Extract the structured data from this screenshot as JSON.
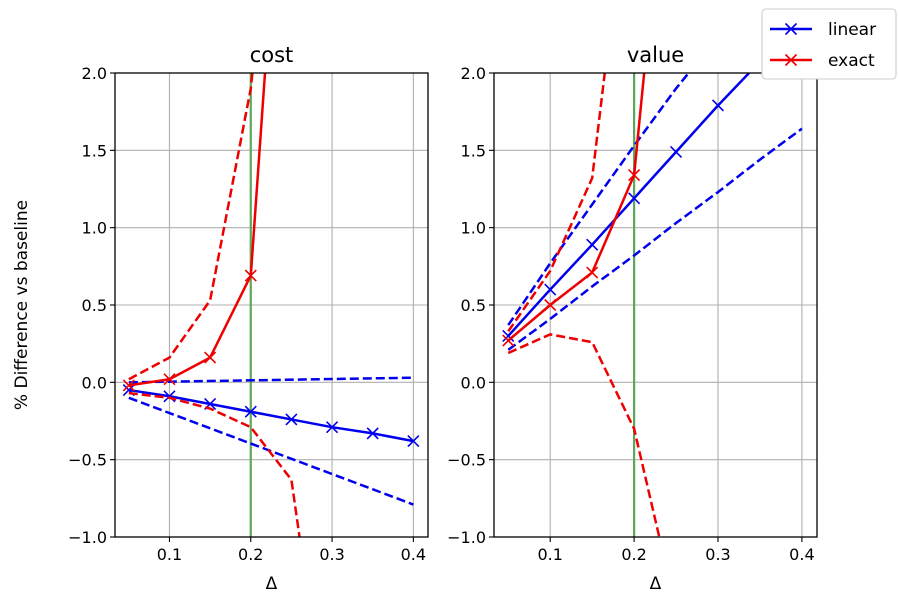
{
  "chart_data": [
    {
      "type": "line",
      "title": "cost",
      "xlabel": "Δ",
      "ylabel": "% Difference vs baseline",
      "xlim": [
        0.033,
        0.418
      ],
      "ylim": [
        -1.0,
        2.0
      ],
      "xticks": [
        "0.1",
        "0.2",
        "0.3",
        "0.4"
      ],
      "xtick_values": [
        0.1,
        0.2,
        0.3,
        0.4
      ],
      "yticks": [
        "−1.0",
        "−0.5",
        "0.0",
        "0.5",
        "1.0",
        "1.5",
        "2.0"
      ],
      "ytick_values": [
        -1.0,
        -0.5,
        0.0,
        0.5,
        1.0,
        1.5,
        2.0
      ],
      "grid": true,
      "vline": {
        "x": 0.2,
        "color": "#5aa85a"
      },
      "series": [
        {
          "legend": "linear",
          "color": "#0000ee",
          "style": "solid",
          "marker": "x",
          "x": [
            0.05,
            0.1,
            0.15,
            0.2,
            0.25,
            0.3,
            0.35,
            0.4
          ],
          "y": [
            -0.05,
            -0.09,
            -0.14,
            -0.19,
            -0.24,
            -0.29,
            -0.33,
            -0.38
          ]
        },
        {
          "color": "#0000ee",
          "style": "dashed",
          "x": [
            0.05,
            0.4
          ],
          "y": [
            0.0,
            0.03
          ]
        },
        {
          "color": "#0000ee",
          "style": "dashed",
          "x": [
            0.05,
            0.4
          ],
          "y": [
            -0.1,
            -0.79
          ]
        },
        {
          "legend": "exact",
          "color": "#ee0000",
          "style": "solid",
          "marker": "x",
          "x": [
            0.05,
            0.1,
            0.15,
            0.2,
            0.2175
          ],
          "y": [
            -0.02,
            0.02,
            0.16,
            0.69,
            2.0
          ]
        },
        {
          "color": "#ee0000",
          "style": "dashed",
          "x": [
            0.05,
            0.1,
            0.15,
            0.2,
            0.202
          ],
          "y": [
            0.02,
            0.16,
            0.53,
            1.9,
            2.0
          ]
        },
        {
          "color": "#ee0000",
          "style": "dashed",
          "x": [
            0.05,
            0.1,
            0.15,
            0.2,
            0.25,
            0.26
          ],
          "y": [
            -0.07,
            -0.1,
            -0.17,
            -0.29,
            -0.63,
            -1.0
          ]
        }
      ]
    },
    {
      "type": "line",
      "title": "value",
      "xlabel": "Δ",
      "ylabel": "",
      "xlim": [
        0.033,
        0.418
      ],
      "ylim": [
        -1.0,
        2.0
      ],
      "xticks": [
        "0.1",
        "0.2",
        "0.3",
        "0.4"
      ],
      "xtick_values": [
        0.1,
        0.2,
        0.3,
        0.4
      ],
      "yticks": [
        "−1.0",
        "−0.5",
        "0.0",
        "0.5",
        "1.0",
        "1.5",
        "2.0"
      ],
      "ytick_values": [
        -1.0,
        -0.5,
        0.0,
        0.5,
        1.0,
        1.5,
        2.0
      ],
      "grid": true,
      "vline": {
        "x": 0.2,
        "color": "#5aa85a"
      },
      "series": [
        {
          "legend": "linear",
          "color": "#0000ee",
          "style": "solid",
          "marker": "x",
          "x": [
            0.05,
            0.1,
            0.15,
            0.2,
            0.25,
            0.3,
            0.337
          ],
          "y": [
            0.3,
            0.6,
            0.89,
            1.19,
            1.49,
            1.79,
            2.0
          ]
        },
        {
          "color": "#0000ee",
          "style": "dashed",
          "x": [
            0.05,
            0.1,
            0.15,
            0.2,
            0.25,
            0.265
          ],
          "y": [
            0.37,
            0.77,
            1.15,
            1.53,
            1.9,
            2.0
          ]
        },
        {
          "color": "#0000ee",
          "style": "dashed",
          "x": [
            0.05,
            0.1,
            0.15,
            0.2,
            0.25,
            0.3,
            0.35,
            0.4
          ],
          "y": [
            0.21,
            0.41,
            0.62,
            0.82,
            1.03,
            1.23,
            1.44,
            1.64
          ]
        },
        {
          "legend": "exact",
          "color": "#ee0000",
          "style": "solid",
          "marker": "x",
          "x": [
            0.05,
            0.1,
            0.15,
            0.2,
            0.212
          ],
          "y": [
            0.27,
            0.5,
            0.71,
            1.34,
            2.0
          ]
        },
        {
          "color": "#ee0000",
          "style": "dashed",
          "x": [
            0.05,
            0.1,
            0.15,
            0.165
          ],
          "y": [
            0.33,
            0.72,
            1.32,
            2.0
          ]
        },
        {
          "color": "#ee0000",
          "style": "dashed",
          "x": [
            0.05,
            0.1,
            0.15,
            0.2,
            0.23
          ],
          "y": [
            0.19,
            0.31,
            0.26,
            -0.3,
            -1.0
          ]
        }
      ]
    }
  ],
  "legend": {
    "position": "top-right",
    "entries": [
      {
        "label": "linear",
        "color": "#0000ee"
      },
      {
        "label": "exact",
        "color": "#ee0000"
      }
    ]
  }
}
